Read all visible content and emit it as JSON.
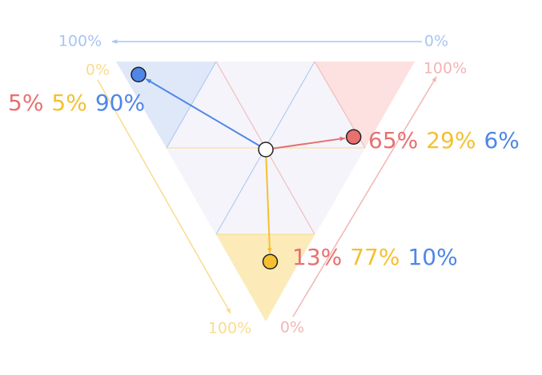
{
  "chart_data": {
    "type": "ternary",
    "axes": [
      {
        "color": "#a9c4f3",
        "ticks": [
          {
            "value": 100,
            "label": "100%"
          },
          {
            "value": 0,
            "label": "0%"
          }
        ]
      },
      {
        "color": "#f9dc8e",
        "ticks": [
          {
            "value": 0,
            "label": "0%"
          },
          {
            "value": 100,
            "label": "100%"
          }
        ]
      },
      {
        "color": "#f3b5b4",
        "ticks": [
          {
            "value": 100,
            "label": "100%"
          },
          {
            "value": 0,
            "label": "0%"
          }
        ]
      }
    ],
    "components": [
      {
        "color": "#e8706f"
      },
      {
        "color": "#f5c030"
      },
      {
        "color": "#4f86e8"
      }
    ],
    "points": [
      {
        "color": "#4f86e8",
        "values": [
          5,
          5,
          90
        ],
        "value_labels": [
          "5%",
          "5%",
          "90%"
        ]
      },
      {
        "color": "#e8706f",
        "values": [
          65,
          29,
          6
        ],
        "value_labels": [
          "65%",
          "29%",
          "6%"
        ]
      },
      {
        "color": "#f5c030",
        "values": [
          13,
          77,
          10
        ],
        "value_labels": [
          "13%",
          "77%",
          "10%"
        ]
      }
    ]
  }
}
